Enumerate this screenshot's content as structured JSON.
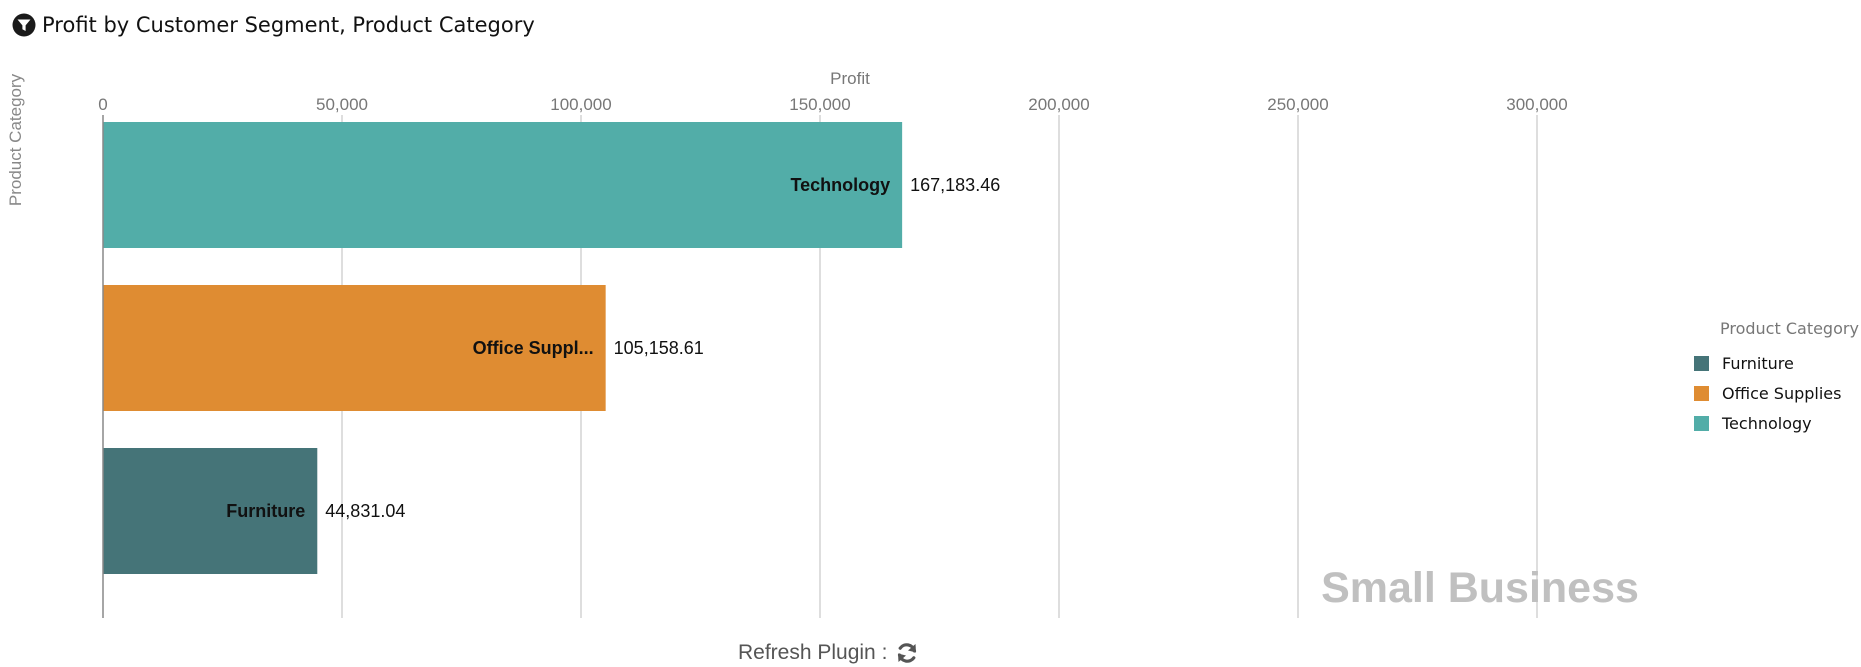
{
  "title": "Profit by Customer Segment, Product Category",
  "icons": {
    "title": "filter-icon",
    "refresh": "refresh-icon"
  },
  "refresh": {
    "label": "Refresh Plugin :"
  },
  "colors": {
    "Furniture": "#457478",
    "Office Supplies": "#df8c32",
    "Technology": "#52ada8"
  },
  "chart_data": {
    "type": "bar",
    "orientation": "horizontal",
    "xlabel": "Profit",
    "ylabel": "Product Category",
    "xlim": [
      0,
      350000
    ],
    "xticks": [
      0,
      50000,
      100000,
      150000,
      200000,
      250000,
      300000
    ],
    "xtick_labels": [
      "0",
      "50,000",
      "100,000",
      "150,000",
      "200,000",
      "250,000",
      "300,000"
    ],
    "grid": true,
    "categories": [
      "Technology",
      "Office Supplies",
      "Furniture"
    ],
    "bar_labels": [
      "Technology",
      "Office Suppl...",
      "Furniture"
    ],
    "values": [
      167183.46,
      105158.61,
      44831.04
    ],
    "value_labels": [
      "167,183.46",
      "105,158.61",
      "44,831.04"
    ],
    "watermark": "Small Business",
    "legend": {
      "title": "Product Category",
      "placement": "right",
      "entries": [
        "Furniture",
        "Office Supplies",
        "Technology"
      ]
    }
  }
}
